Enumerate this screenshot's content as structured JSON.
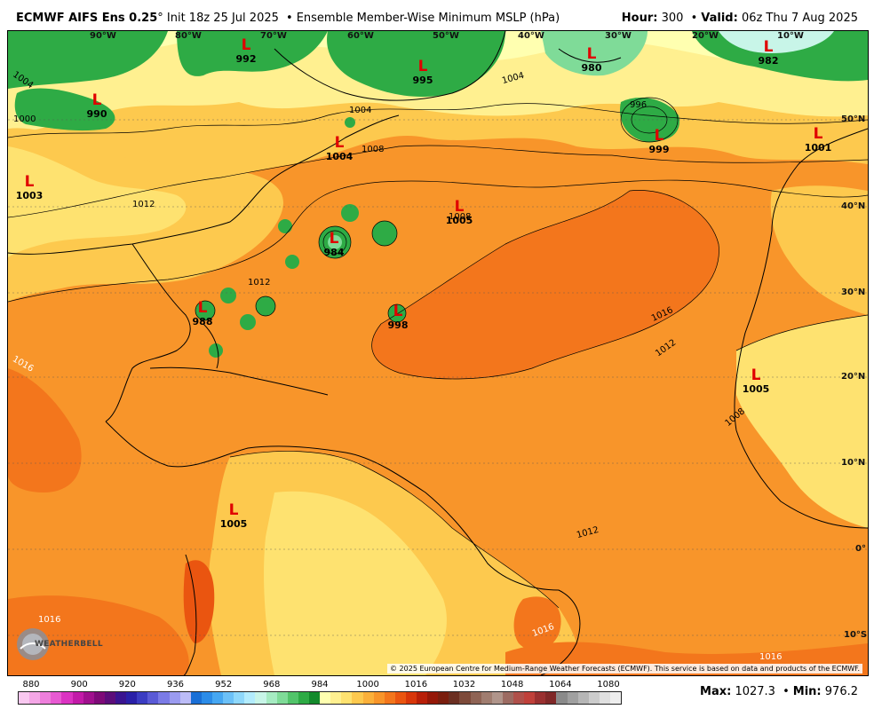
{
  "header": {
    "model": "ECMWF AIFS Ens 0.25",
    "degree_mark": "°",
    "init": "Init 18z 25 Jul 2025",
    "bullet": "•",
    "product": "Ensemble Member-Wise Minimum MSLP (hPa)",
    "hour_label": "Hour:",
    "hour_value": "300",
    "valid_label": "Valid:",
    "valid_value": "06z Thu 7 Aug 2025"
  },
  "map": {
    "lon_labels": [
      "90°W",
      "80°W",
      "70°W",
      "60°W",
      "50°W",
      "40°W",
      "30°W",
      "20°W",
      "10°W"
    ],
    "lat_labels": [
      "50°N",
      "40°N",
      "30°N",
      "20°N",
      "10°N",
      "0°",
      "10°S"
    ],
    "lows": [
      {
        "letter": "L",
        "pressure": "992"
      },
      {
        "letter": "L",
        "pressure": "990"
      },
      {
        "letter": "L",
        "pressure": "995"
      },
      {
        "letter": "L",
        "pressure": "980"
      },
      {
        "letter": "L",
        "pressure": "982"
      },
      {
        "letter": "L",
        "pressure": "999"
      },
      {
        "letter": "L",
        "pressure": "1001"
      },
      {
        "letter": "L",
        "pressure": "1003"
      },
      {
        "letter": "L",
        "pressure": "1004"
      },
      {
        "letter": "L",
        "pressure": "1005"
      },
      {
        "letter": "L",
        "pressure": "984"
      },
      {
        "letter": "L",
        "pressure": "998"
      },
      {
        "letter": "L",
        "pressure": "988"
      },
      {
        "letter": "L",
        "pressure": "1005"
      },
      {
        "letter": "L",
        "pressure": "1005"
      }
    ],
    "contour_labels": [
      "1004",
      "1000",
      "1004",
      "1008",
      "1012",
      "1016",
      "1012",
      "1016",
      "1012",
      "1008",
      "996",
      "1004",
      "1008",
      "1012",
      "1016",
      "1016",
      "1016"
    ],
    "credit": "© 2025 European Centre for Medium-Range Weather Forecasts (ECMWF). This service is based on data and products of the ECMWF.",
    "logo_text": "WEATHERBELL"
  },
  "colorbar": {
    "labels": [
      "880",
      "900",
      "920",
      "936",
      "952",
      "968",
      "984",
      "1000",
      "1016",
      "1032",
      "1048",
      "1064",
      "1080"
    ],
    "colors": [
      "#f9c8f0",
      "#f4a6e6",
      "#ee7fdc",
      "#e85ad2",
      "#db33c2",
      "#c21aa8",
      "#a0108e",
      "#7e0a78",
      "#5c0d7a",
      "#3a1490",
      "#2a20a8",
      "#3b3cc2",
      "#5a5ad6",
      "#7b7be6",
      "#9b9bf0",
      "#bcbcf7",
      "#1a6fd6",
      "#2c8ce8",
      "#46a7f2",
      "#6cc1f8",
      "#8fd8fb",
      "#b3ecfd",
      "#c8f5e8",
      "#a6ebc2",
      "#7fdb98",
      "#52c46a",
      "#2eab45",
      "#138a2c",
      "#ffffb0",
      "#fff090",
      "#fee270",
      "#fdc94e",
      "#fbb03a",
      "#f8952a",
      "#f3761c",
      "#ea5510",
      "#d8360a",
      "#b81f08",
      "#951808",
      "#7a1e0e",
      "#6b2f22",
      "#7d4a3a",
      "#8f6455",
      "#a07d70",
      "#b0958b",
      "#9c6b62",
      "#b0504a",
      "#c0403a",
      "#9a3030",
      "#802828",
      "#8a8a8a",
      "#a0a0a0",
      "#b6b6b6",
      "#cccccc",
      "#e0e0e0",
      "#eeeeee"
    ]
  },
  "stats": {
    "max_label": "Max:",
    "max_value": "1027.3",
    "min_label": "Min:",
    "min_value": "976.2"
  }
}
